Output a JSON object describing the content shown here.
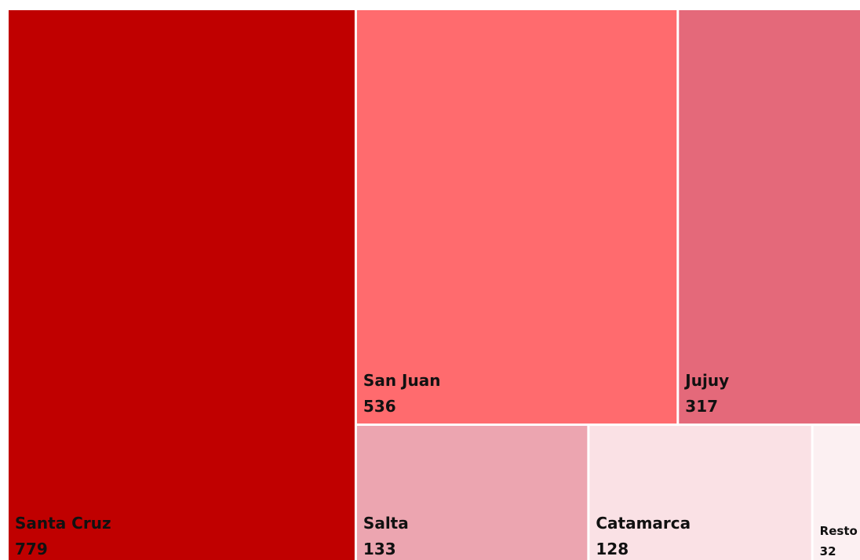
{
  "chart_data": {
    "type": "treemap",
    "categories": [
      "Santa Cruz",
      "San Juan",
      "Jujuy",
      "Salta",
      "Catamarca",
      "Resto"
    ],
    "values": [
      779,
      536,
      317,
      133,
      128,
      32
    ],
    "colors": [
      "#c00000",
      "#ff6b6e",
      "#e4697a",
      "#eca5b0",
      "#fae1e5",
      "#fcf0f2"
    ]
  }
}
